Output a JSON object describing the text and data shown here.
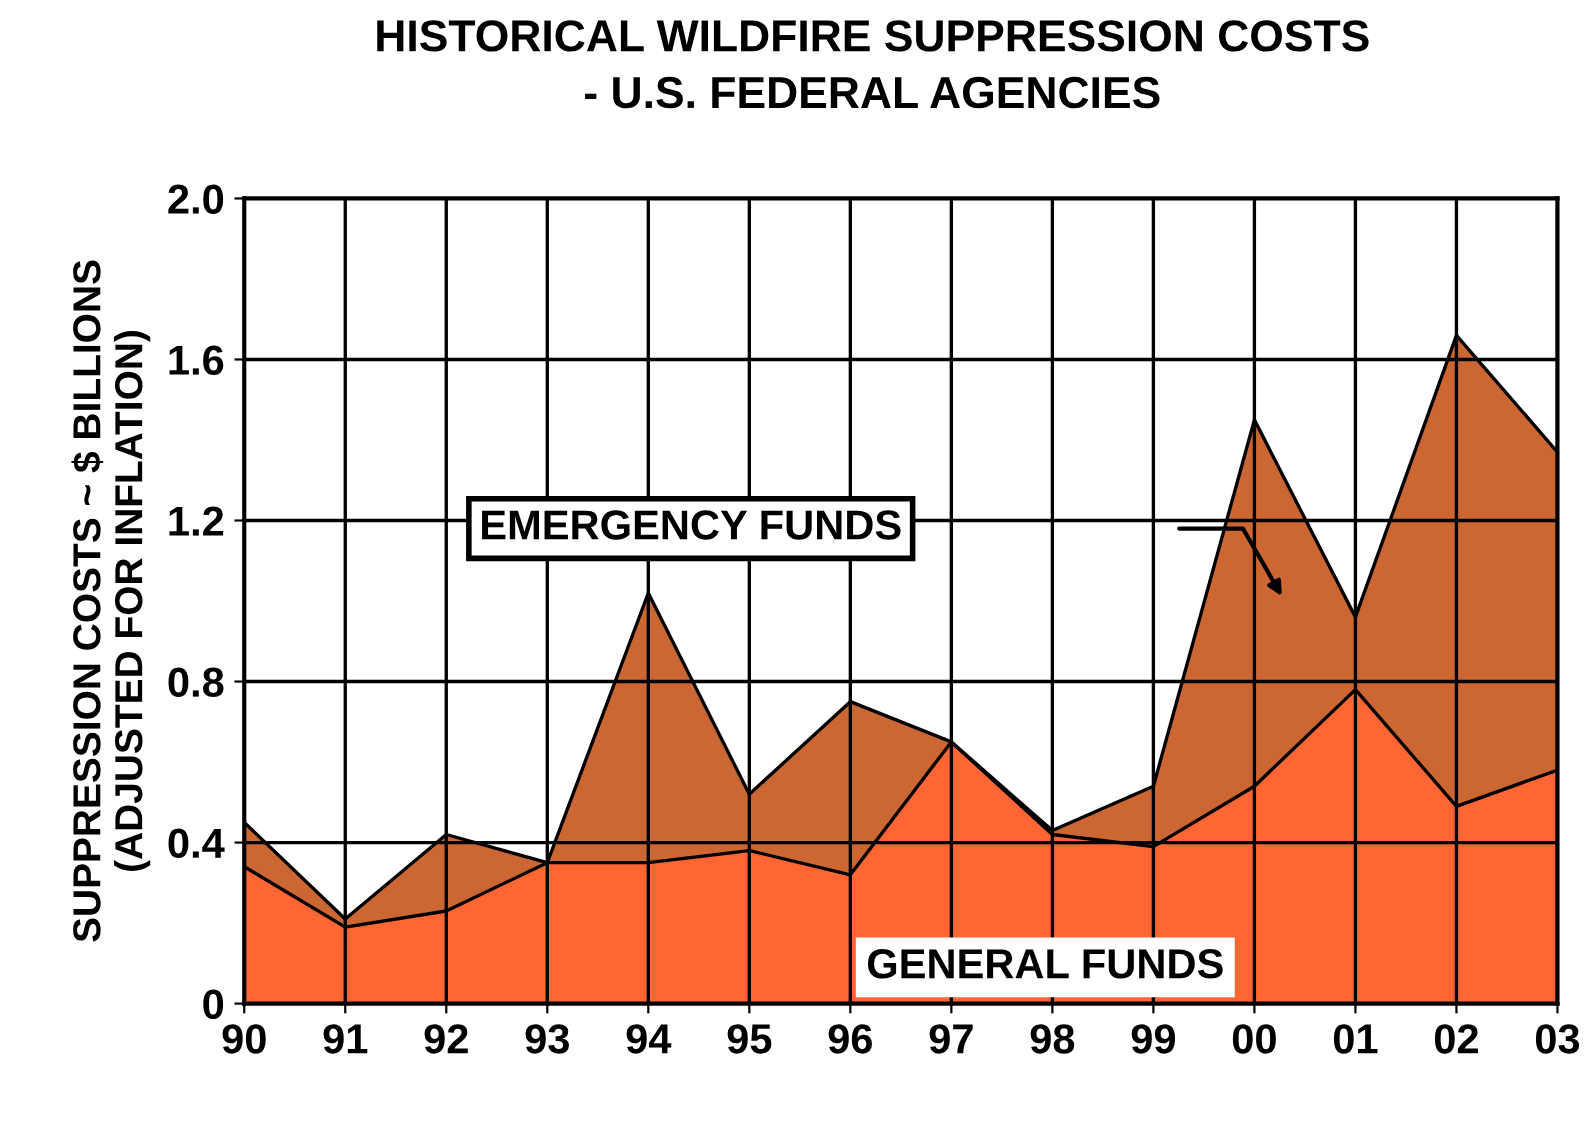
{
  "chart_data": {
    "type": "area",
    "stacked": true,
    "title": "HISTORICAL WILDFIRE SUPPRESSION COSTS",
    "subtitle": "- U.S. FEDERAL AGENCIES",
    "ylabel": "SUPPRESSION COSTS ~ $ BILLIONS\n(ADJUSTED FOR INFLATION)",
    "categories": [
      "90",
      "91",
      "92",
      "93",
      "94",
      "95",
      "96",
      "97",
      "98",
      "99",
      "00",
      "01",
      "02",
      "03"
    ],
    "series": [
      {
        "name": "GENERAL FUNDS",
        "color": "#ff6633",
        "values": [
          0.34,
          0.19,
          0.23,
          0.35,
          0.35,
          0.38,
          0.32,
          0.65,
          0.42,
          0.39,
          0.54,
          0.78,
          0.49,
          0.58
        ]
      },
      {
        "name": "EMERGENCY FUNDS",
        "color": "#cc6633",
        "values": [
          0.11,
          0.02,
          0.19,
          0.0,
          0.67,
          0.14,
          0.43,
          0.0,
          0.01,
          0.15,
          0.91,
          0.18,
          1.17,
          0.79
        ]
      }
    ],
    "ylim": [
      0,
      2
    ],
    "yticks": [
      0,
      0.4,
      0.8,
      1.2,
      1.6,
      {
        "value": 2,
        "label": "2.0"
      }
    ],
    "grid": true,
    "legend": false
  }
}
